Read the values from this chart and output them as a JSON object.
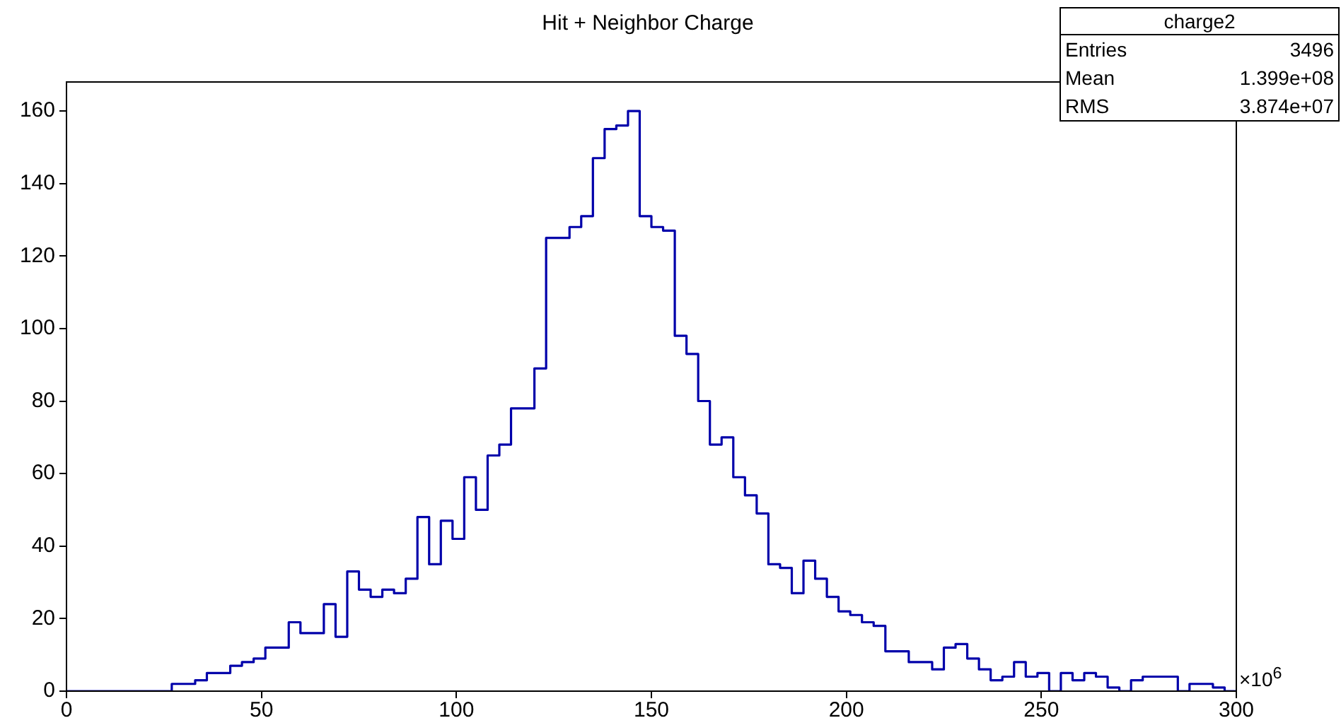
{
  "chart_data": {
    "type": "histogram",
    "title": "Hit + Neighbor Charge",
    "xlabel": "×10$^{6}$",
    "bins": [
      0,
      3,
      6,
      9,
      12,
      15,
      18,
      21,
      24,
      27,
      30,
      33,
      36,
      39,
      42,
      45,
      48,
      51,
      54,
      57,
      60,
      63,
      66,
      69,
      72,
      75,
      78,
      81,
      84,
      87,
      90,
      93,
      96,
      99,
      102,
      105,
      108,
      111,
      114,
      117,
      120,
      123,
      126,
      129,
      132,
      135,
      138,
      141,
      144,
      147,
      150,
      153,
      156,
      159,
      162,
      165,
      168,
      171,
      174,
      177,
      180,
      183,
      186,
      189,
      192,
      195,
      198,
      201,
      204,
      207,
      210,
      213,
      216,
      219,
      222,
      225,
      228,
      231,
      234,
      237,
      240,
      243,
      246,
      249,
      252,
      255,
      258,
      261,
      264,
      267,
      270,
      273,
      276,
      279,
      282,
      285,
      288,
      291,
      294,
      297,
      300
    ],
    "values": [
      0,
      0,
      0,
      0,
      0,
      0,
      0,
      0,
      0,
      2,
      2,
      3,
      5,
      5,
      7,
      8,
      9,
      12,
      12,
      19,
      16,
      16,
      24,
      15,
      33,
      28,
      26,
      28,
      27,
      31,
      48,
      35,
      47,
      42,
      59,
      50,
      65,
      68,
      78,
      78,
      89,
      125,
      125,
      128,
      131,
      147,
      155,
      156,
      160,
      131,
      128,
      127,
      98,
      93,
      80,
      68,
      70,
      59,
      54,
      49,
      35,
      34,
      27,
      36,
      31,
      26,
      22,
      21,
      19,
      18,
      11,
      11,
      8,
      8,
      6,
      12,
      13,
      9,
      6,
      3,
      4,
      8,
      4,
      5,
      0,
      5,
      3,
      5,
      4,
      1,
      0,
      3,
      4,
      4,
      4,
      0,
      2,
      2,
      1,
      0
    ],
    "color": "#0000aa",
    "xlim": [
      0,
      300
    ],
    "xticks": [
      0,
      50,
      100,
      150,
      200,
      250,
      300
    ],
    "ylim": [
      0,
      168
    ],
    "yticks": [
      0,
      20,
      40,
      60,
      80,
      100,
      120,
      140,
      160
    ],
    "annotations": [
      "charge2",
      "Entries",
      "3496",
      "Mean",
      "1.399e+08",
      "RMS",
      "3.874e+07"
    ],
    "grid": false,
    "legend": false
  }
}
